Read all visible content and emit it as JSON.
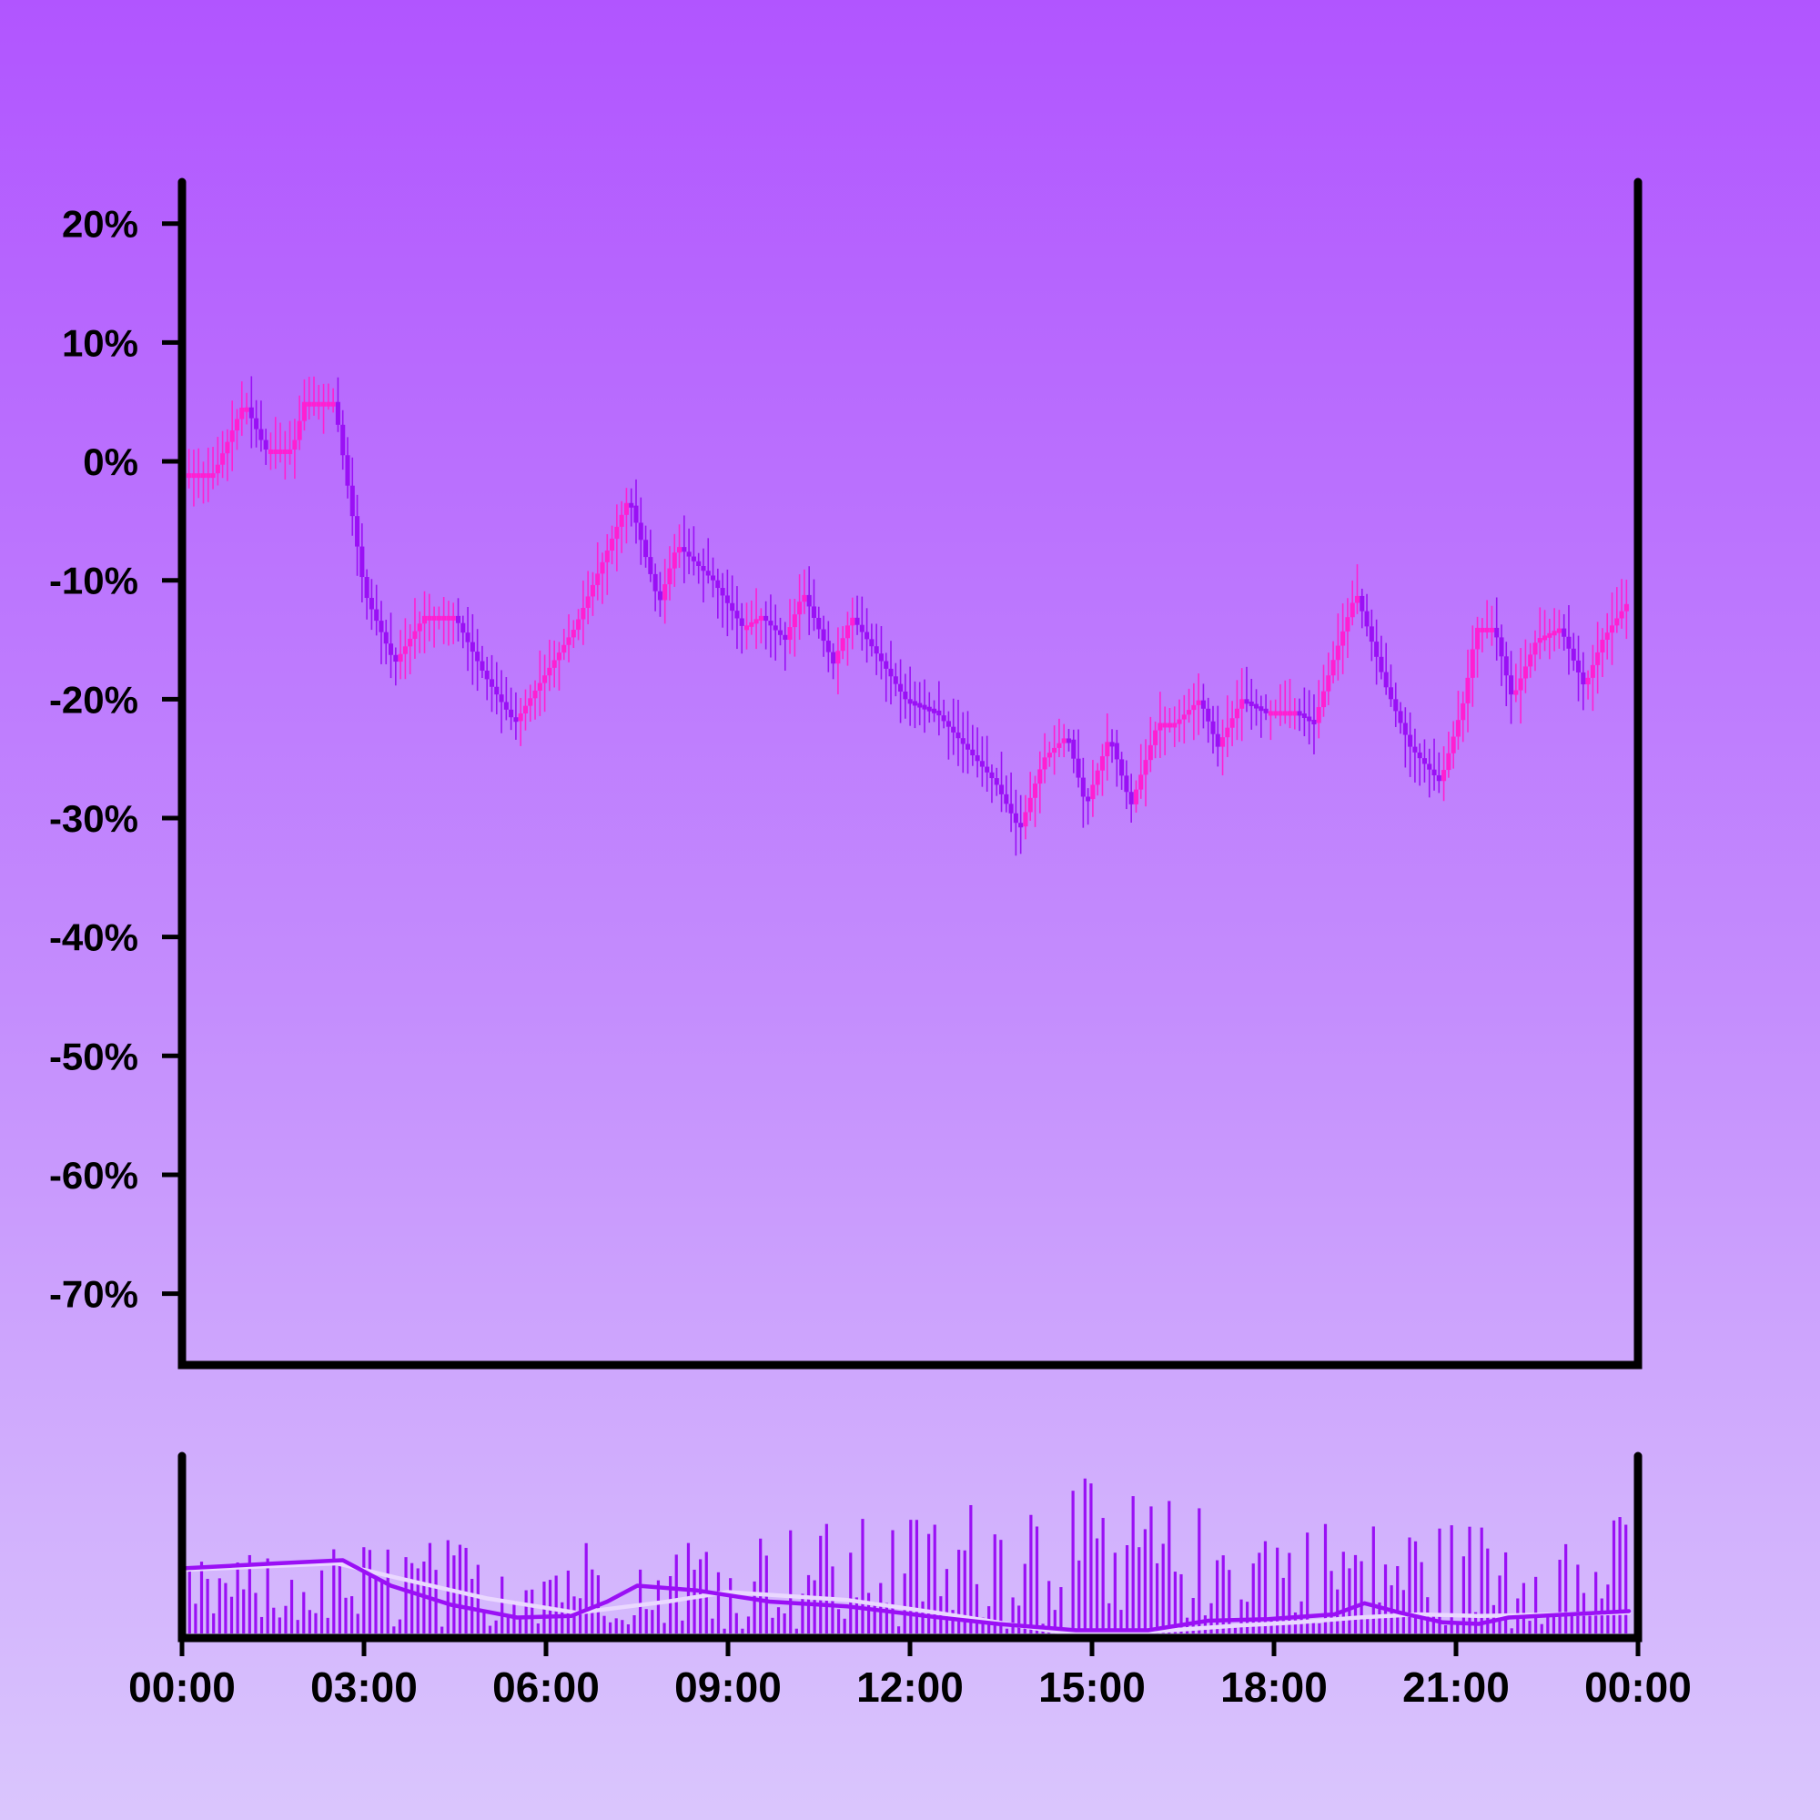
{
  "chart_data": [
    {
      "type": "candlestick",
      "panel": "price",
      "title": "",
      "xlabel": "",
      "ylabel": "",
      "ylim": [
        -76,
        23.5
      ],
      "y_tick_values": [
        20,
        10,
        0,
        -10,
        -20,
        -30,
        -40,
        -50,
        -60,
        -70
      ],
      "y_tick_labels": [
        "20%",
        "10%",
        "0%",
        "-10%",
        "-20%",
        "-30%",
        "-40%",
        "-50%",
        "-60%",
        "-70%"
      ],
      "x_tick_labels": [
        "00:00",
        "03:00",
        "06:00",
        "09:00",
        "12:00",
        "15:00",
        "18:00",
        "21:00",
        "00:00"
      ],
      "x_range_hours": [
        0,
        24
      ],
      "grid": false,
      "legend": "none",
      "up_color": "#ff1fd2",
      "down_color": "#9a10f5",
      "path_keypoints": [
        [
          0.0,
          -1
        ],
        [
          0.5,
          -1
        ],
        [
          1.0,
          5
        ],
        [
          1.35,
          1
        ],
        [
          1.8,
          1
        ],
        [
          2.0,
          5
        ],
        [
          2.5,
          5
        ],
        [
          3.0,
          -11
        ],
        [
          3.5,
          -17
        ],
        [
          4.0,
          -13
        ],
        [
          4.5,
          -13
        ],
        [
          5.0,
          -18
        ],
        [
          5.5,
          -22
        ],
        [
          6.0,
          -18
        ],
        [
          6.5,
          -14
        ],
        [
          7.0,
          -8
        ],
        [
          7.4,
          -3
        ],
        [
          7.9,
          -12
        ],
        [
          8.2,
          -7
        ],
        [
          8.8,
          -10
        ],
        [
          9.3,
          -14
        ],
        [
          9.6,
          -13
        ],
        [
          10.0,
          -15
        ],
        [
          10.3,
          -11
        ],
        [
          10.8,
          -17
        ],
        [
          11.1,
          -13
        ],
        [
          11.5,
          -16
        ],
        [
          12.0,
          -20
        ],
        [
          12.5,
          -21
        ],
        [
          13.0,
          -24
        ],
        [
          13.5,
          -27
        ],
        [
          13.9,
          -31
        ],
        [
          14.3,
          -25
        ],
        [
          14.7,
          -23
        ],
        [
          15.0,
          -29
        ],
        [
          15.4,
          -23
        ],
        [
          15.75,
          -29
        ],
        [
          16.2,
          -22
        ],
        [
          16.5,
          -22
        ],
        [
          16.9,
          -20
        ],
        [
          17.2,
          -24
        ],
        [
          17.6,
          -20
        ],
        [
          18.0,
          -21
        ],
        [
          18.5,
          -21
        ],
        [
          18.8,
          -22
        ],
        [
          19.1,
          -17
        ],
        [
          19.5,
          -11
        ],
        [
          20.0,
          -19
        ],
        [
          20.4,
          -24
        ],
        [
          20.9,
          -27
        ],
        [
          21.3,
          -20
        ],
        [
          21.5,
          -14
        ],
        [
          21.8,
          -14
        ],
        [
          22.1,
          -20
        ],
        [
          22.5,
          -15
        ],
        [
          22.9,
          -14
        ],
        [
          23.3,
          -19
        ],
        [
          23.6,
          -15
        ],
        [
          24.0,
          -12
        ]
      ]
    },
    {
      "type": "bar",
      "panel": "volume",
      "title": "",
      "bar_color": "#9a10f5",
      "ylim": [
        0,
        1
      ],
      "bar_spacing_hours": 0.1,
      "volume_profile": [
        [
          0.0,
          0.35
        ],
        [
          3.0,
          0.45
        ],
        [
          6.0,
          0.48
        ],
        [
          9.0,
          0.52
        ],
        [
          12.0,
          0.58
        ],
        [
          14.5,
          0.78
        ],
        [
          17.0,
          0.62
        ],
        [
          20.0,
          0.55
        ],
        [
          24.0,
          0.58
        ]
      ],
      "series": [
        {
          "line_color": "#9a10f5",
          "points": [
            [
              0.0,
              0.41
            ],
            [
              1.5,
              0.44
            ],
            [
              2.6,
              0.46
            ],
            [
              3.4,
              0.3
            ],
            [
              4.4,
              0.18
            ],
            [
              5.5,
              0.1
            ],
            [
              6.4,
              0.11
            ],
            [
              7.0,
              0.2
            ],
            [
              7.5,
              0.3
            ],
            [
              8.5,
              0.27
            ],
            [
              9.7,
              0.2
            ],
            [
              11.0,
              0.17
            ],
            [
              12.3,
              0.11
            ],
            [
              13.5,
              0.06
            ],
            [
              14.8,
              0.02
            ],
            [
              16.0,
              0.02
            ],
            [
              17.0,
              0.08
            ],
            [
              18.0,
              0.09
            ],
            [
              19.1,
              0.12
            ],
            [
              19.6,
              0.19
            ],
            [
              20.2,
              0.13
            ],
            [
              20.9,
              0.07
            ],
            [
              21.5,
              0.06
            ],
            [
              22.0,
              0.1
            ],
            [
              24.0,
              0.14
            ]
          ]
        },
        {
          "line_color": "#ead8ff",
          "points": [
            [
              0.0,
              0.4
            ],
            [
              2.5,
              0.44
            ],
            [
              3.5,
              0.35
            ],
            [
              5.0,
              0.22
            ],
            [
              6.5,
              0.13
            ],
            [
              8.0,
              0.2
            ],
            [
              9.0,
              0.26
            ],
            [
              11.0,
              0.21
            ],
            [
              12.5,
              0.13
            ],
            [
              14.5,
              0.01
            ],
            [
              16.0,
              0.01
            ],
            [
              17.5,
              0.05
            ],
            [
              18.5,
              0.07
            ],
            [
              19.5,
              0.1
            ],
            [
              20.5,
              0.12
            ],
            [
              21.5,
              0.11
            ],
            [
              24.0,
              0.13
            ]
          ]
        }
      ]
    }
  ]
}
